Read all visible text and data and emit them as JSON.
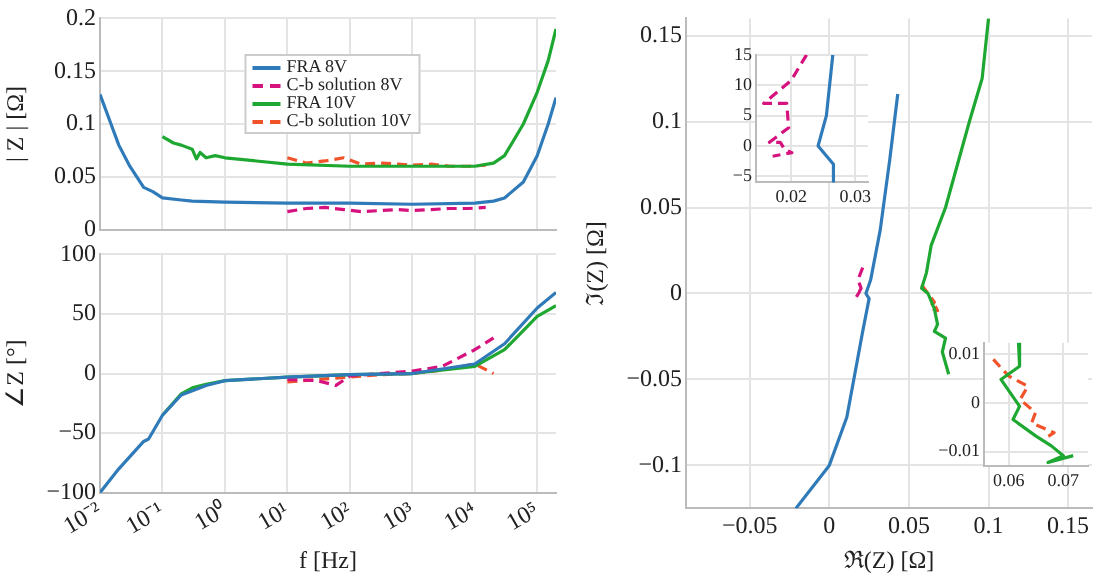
{
  "chart_data": [
    {
      "type": "line",
      "ylabel": "| Z | [Ω]",
      "log": "x",
      "xlim": [
        0.01,
        200000
      ],
      "ylim": [
        0,
        0.2
      ],
      "xticks": [
        {
          "value": 0.01,
          "label": null
        },
        {
          "value": 0.1,
          "label": null
        },
        {
          "value": 1,
          "label": null
        },
        {
          "value": 10,
          "label": null
        },
        {
          "value": 100,
          "label": null
        },
        {
          "value": 1000,
          "label": null
        },
        {
          "value": 10000,
          "label": null
        },
        {
          "value": 100000,
          "label": null
        }
      ],
      "yticks": [
        0,
        0.05,
        0.1,
        0.15,
        0.2
      ],
      "tick_labels": "y",
      "grid": true,
      "legend": "top",
      "marker": "none",
      "series": [
        {
          "name": "FRA 8V",
          "color": "#2f7ab8",
          "line_style": "solid",
          "x": [
            0.01,
            0.015,
            0.02,
            0.03,
            0.05,
            0.07,
            0.1,
            0.2,
            0.3,
            1,
            10,
            100,
            1000,
            10000,
            20000,
            30000,
            60000,
            100000,
            150000,
            200000
          ],
          "values": [
            0.128,
            0.1,
            0.08,
            0.06,
            0.04,
            0.036,
            0.03,
            0.028,
            0.027,
            0.026,
            0.025,
            0.025,
            0.024,
            0.025,
            0.027,
            0.03,
            0.045,
            0.07,
            0.1,
            0.125
          ]
        },
        {
          "name": "C-b solution 8V",
          "color": "#d6127f",
          "line_style": "dashed",
          "x": [
            10,
            20,
            40,
            80,
            150,
            300,
            600,
            1000,
            2000,
            4000,
            8000,
            15000
          ],
          "values": [
            0.017,
            0.02,
            0.021,
            0.019,
            0.017,
            0.018,
            0.019,
            0.018,
            0.019,
            0.02,
            0.02,
            0.021
          ]
        },
        {
          "name": "FRA 10V",
          "color": "#1ea832",
          "line_style": "solid",
          "x": [
            0.1,
            0.15,
            0.2,
            0.3,
            0.35,
            0.4,
            0.5,
            0.7,
            1,
            10,
            100,
            1000,
            10000,
            20000,
            30000,
            60000,
            100000,
            150000,
            200000
          ],
          "values": [
            0.088,
            0.082,
            0.08,
            0.076,
            0.067,
            0.073,
            0.068,
            0.07,
            0.068,
            0.062,
            0.06,
            0.06,
            0.06,
            0.063,
            0.07,
            0.1,
            0.13,
            0.16,
            0.19
          ]
        },
        {
          "name": "C-b solution 10V",
          "color": "#f0522a",
          "line_style": "dashed",
          "x": [
            10,
            20,
            40,
            80,
            150,
            300,
            600,
            1000,
            2000,
            4000,
            8000,
            15000
          ],
          "values": [
            0.068,
            0.063,
            0.065,
            0.068,
            0.062,
            0.063,
            0.062,
            0.061,
            0.062,
            0.06,
            0.06,
            0.061
          ]
        }
      ]
    },
    {
      "type": "line",
      "xlabel": "f [Hz]",
      "ylabel": "∠Z [°]",
      "log": "x",
      "xlim": [
        0.01,
        200000
      ],
      "ylim": [
        -100,
        100
      ],
      "xticks": [
        {
          "value": 0.01,
          "label": "10⁻²"
        },
        {
          "value": 0.1,
          "label": "10⁻¹"
        },
        {
          "value": 1,
          "label": "10⁰"
        },
        {
          "value": 10,
          "label": "10¹"
        },
        {
          "value": 100,
          "label": "10²"
        },
        {
          "value": 1000,
          "label": "10³"
        },
        {
          "value": 10000,
          "label": "10⁴"
        },
        {
          "value": 100000,
          "label": "10⁵"
        }
      ],
      "yticks": [
        {
          "value": -100,
          "label": "−100"
        },
        {
          "value": -50,
          "label": "−50"
        },
        0,
        50,
        100
      ],
      "grid": true,
      "marker": "none",
      "series": [
        {
          "color": "#2f7ab8",
          "line_style": "solid",
          "x": [
            0.01,
            0.02,
            0.05,
            0.06,
            0.1,
            0.2,
            0.5,
            1,
            10,
            100,
            1000,
            10000,
            30000,
            100000,
            200000
          ],
          "values": [
            -100,
            -80,
            -57,
            -55,
            -35,
            -18,
            -10,
            -6,
            -3,
            -1,
            0,
            8,
            25,
            55,
            68
          ]
        },
        {
          "color": "#d6127f",
          "line_style": "dashed",
          "x": [
            10,
            30,
            60,
            100,
            300,
            1000,
            3000,
            10000,
            20000
          ],
          "values": [
            -5,
            -6,
            -10,
            -2,
            0,
            2,
            6,
            20,
            30
          ]
        },
        {
          "color": "#1ea832",
          "line_style": "solid",
          "x": [
            0.1,
            0.2,
            0.3,
            0.5,
            1,
            10,
            100,
            1000,
            10000,
            30000,
            100000,
            200000
          ],
          "values": [
            -35,
            -17,
            -12,
            -9,
            -6,
            -3,
            -1,
            0,
            6,
            20,
            48,
            57
          ]
        },
        {
          "color": "#f0522a",
          "line_style": "dashed",
          "x": [
            10,
            30,
            100,
            300,
            1000,
            3000,
            10000,
            20000
          ],
          "values": [
            -7,
            -5,
            -3,
            -1,
            0,
            3,
            8,
            0
          ]
        }
      ]
    },
    {
      "type": "line",
      "xlabel": "ℜ(Z) [Ω]",
      "ylabel": "ℑ(Z) [Ω]",
      "xlim": [
        -0.09,
        0.165
      ],
      "ylim": [
        -0.125,
        0.16
      ],
      "xticks": [
        {
          "value": -0.05,
          "label": "−0.05"
        },
        0,
        0.05,
        0.1,
        0.15
      ],
      "yticks": [
        {
          "value": -0.1,
          "label": "−0.1"
        },
        {
          "value": -0.05,
          "label": "−0.05"
        },
        0,
        0.05,
        0.1,
        0.15
      ],
      "grid": true,
      "marker": "none",
      "series": [
        {
          "color": "#2f7ab8",
          "line_style": "solid",
          "x": [
            -0.021,
            0,
            0.011,
            0.021,
            0.025,
            0.023,
            0.026,
            0.032,
            0.038,
            0.043
          ],
          "values": [
            -0.125,
            -0.1,
            -0.072,
            -0.022,
            -0.003,
            0,
            0.008,
            0.037,
            0.078,
            0.116
          ]
        },
        {
          "color": "#d6127f",
          "line_style": "dashed",
          "x": [
            0.021,
            0.018,
            0.02,
            0.017,
            0.019
          ],
          "values": [
            0.015,
            0.008,
            0.003,
            -0.002,
            0.001
          ]
        },
        {
          "color": "#1ea832",
          "line_style": "solid",
          "x": [
            0.1,
            0.096,
            0.088,
            0.073,
            0.064,
            0.061,
            0.058,
            0.062,
            0.066,
            0.068,
            0.066,
            0.073,
            0.071,
            0.075
          ],
          "values": [
            0.16,
            0.125,
            0.1,
            0.05,
            0.028,
            0.012,
            0.003,
            0,
            -0.009,
            -0.018,
            -0.022,
            -0.026,
            -0.034,
            -0.047
          ]
        },
        {
          "color": "#f0522a",
          "line_style": "dashed",
          "x": [
            0.058,
            0.062,
            0.066,
            0.063,
            0.068,
            0.064
          ],
          "values": [
            0.005,
            0,
            -0.005,
            -0.008,
            -0.01,
            -0.003
          ]
        }
      ]
    },
    {
      "type": "line",
      "xlim": [
        0.0145,
        0.032
      ],
      "ylim": [
        -6,
        15
      ],
      "xticks": [
        0.02,
        0.03
      ],
      "yticks": [
        {
          "value": -5,
          "label": "−5"
        },
        0,
        5,
        10,
        15
      ],
      "grid": true,
      "marker": "none",
      "series": [
        {
          "color": "#2f7ab8",
          "line_style": "solid",
          "x": [
            0.0265,
            0.0255,
            0.0242,
            0.0266,
            0.0266
          ],
          "values": [
            15,
            5,
            0,
            -3,
            -6
          ]
        },
        {
          "color": "#d6127f",
          "line_style": "dashed",
          "x": [
            0.0224,
            0.02,
            0.0157,
            0.0193,
            0.0196,
            0.0166,
            0.0183,
            0.019,
            0.0201,
            0.0171
          ],
          "values": [
            15,
            10.8,
            7,
            7,
            3,
            0.6,
            0.6,
            -0.6,
            -1.1,
            -1.7
          ]
        }
      ]
    },
    {
      "type": "line",
      "xlim": [
        0.0555,
        0.0745
      ],
      "ylim": [
        -0.013,
        0.0123
      ],
      "xticks": [
        0.06,
        0.07
      ],
      "yticks": [
        {
          "value": -0.01,
          "label": "−0.01"
        },
        0,
        0.01
      ],
      "grid": true,
      "marker": "none",
      "series": [
        {
          "color": "#1ea832",
          "line_style": "solid",
          "x": [
            0.0618,
            0.062,
            0.0586,
            0.062,
            0.0608,
            0.065,
            0.0678,
            0.07,
            0.0672,
            0.0718
          ],
          "values": [
            0.0123,
            0.0075,
            0.0048,
            -0.0007,
            -0.0034,
            -0.0068,
            -0.0088,
            -0.0108,
            -0.0122,
            -0.0108
          ]
        },
        {
          "color": "#f0522a",
          "line_style": "dashed",
          "x": [
            0.0572,
            0.06,
            0.0635,
            0.0621,
            0.0649,
            0.0642,
            0.0683,
            0.0663
          ],
          "values": [
            0.0089,
            0.0055,
            0.0034,
            0.0007,
            -0.002,
            -0.0041,
            -0.0061,
            -0.0075
          ]
        }
      ]
    }
  ]
}
